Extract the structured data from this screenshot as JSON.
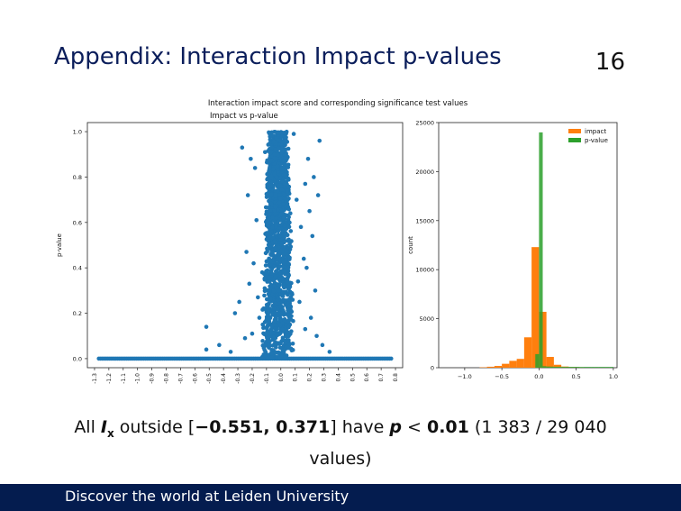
{
  "slide": {
    "title": "Appendix: Interaction Impact p-values",
    "number": "16",
    "caption_line1_pre": "All ",
    "caption_var": "I",
    "caption_sub": "x",
    "caption_mid": " outside [",
    "caption_interval": "−0.551, 0.371",
    "caption_after": "] have ",
    "caption_p": "p",
    "caption_lt": " < ",
    "caption_thresh": "0.01",
    "caption_count": " (1 383 / 29 040",
    "caption_line2": "values)",
    "footer": "Discover the world at Leiden University"
  },
  "figure": {
    "suptitle": "Interaction impact score and corresponding significance test values"
  },
  "chart_data": [
    {
      "type": "scatter",
      "title": "Impact vs p-value",
      "xlabel": "",
      "ylabel": "p-value",
      "color": "#1f77b4",
      "x_ticks": [
        "-1.3",
        "-1.2",
        "-1.1",
        "-1.0",
        "-0.9",
        "-0.8",
        "-0.7",
        "-0.6",
        "-0.5",
        "-0.4",
        "-0.3",
        "-0.2",
        "-0.1",
        "0.0",
        "0.1",
        "0.2",
        "0.3",
        "0.4",
        "0.5",
        "0.6",
        "0.7",
        "0.8"
      ],
      "y_ticks": [
        "0.0",
        "0.2",
        "0.4",
        "0.6",
        "0.8",
        "1.0"
      ],
      "xlim": [
        -1.35,
        0.85
      ],
      "ylim": [
        -0.04,
        1.04
      ],
      "baseline_range": [
        -1.27,
        0.77
      ],
      "core_range": [
        -0.12,
        0.08
      ],
      "outliers": [
        {
          "x": -0.21,
          "y": 0.88
        },
        {
          "x": -0.18,
          "y": 0.84
        },
        {
          "x": -0.23,
          "y": 0.72
        },
        {
          "x": -0.17,
          "y": 0.61
        },
        {
          "x": -0.24,
          "y": 0.47
        },
        {
          "x": -0.19,
          "y": 0.42
        },
        {
          "x": -0.22,
          "y": 0.33
        },
        {
          "x": -0.16,
          "y": 0.27
        },
        {
          "x": -0.29,
          "y": 0.25
        },
        {
          "x": -0.32,
          "y": 0.2
        },
        {
          "x": -0.52,
          "y": 0.14
        },
        {
          "x": -0.52,
          "y": 0.04
        },
        {
          "x": -0.43,
          "y": 0.06
        },
        {
          "x": -0.13,
          "y": 0.38
        },
        {
          "x": -0.15,
          "y": 0.18
        },
        {
          "x": -0.2,
          "y": 0.11
        },
        {
          "x": -0.25,
          "y": 0.09
        },
        {
          "x": -0.35,
          "y": 0.03
        },
        {
          "x": 0.27,
          "y": 0.96
        },
        {
          "x": 0.19,
          "y": 0.88
        },
        {
          "x": 0.23,
          "y": 0.8
        },
        {
          "x": 0.17,
          "y": 0.77
        },
        {
          "x": 0.26,
          "y": 0.72
        },
        {
          "x": 0.2,
          "y": 0.65
        },
        {
          "x": 0.14,
          "y": 0.58
        },
        {
          "x": 0.22,
          "y": 0.54
        },
        {
          "x": 0.16,
          "y": 0.44
        },
        {
          "x": 0.18,
          "y": 0.4
        },
        {
          "x": 0.24,
          "y": 0.3
        },
        {
          "x": 0.13,
          "y": 0.25
        },
        {
          "x": 0.21,
          "y": 0.18
        },
        {
          "x": 0.17,
          "y": 0.13
        },
        {
          "x": 0.25,
          "y": 0.1
        },
        {
          "x": 0.29,
          "y": 0.06
        },
        {
          "x": 0.34,
          "y": 0.03
        },
        {
          "x": 0.11,
          "y": 0.7
        },
        {
          "x": 0.12,
          "y": 0.34
        },
        {
          "x": -0.11,
          "y": 0.91
        },
        {
          "x": -0.27,
          "y": 0.93
        },
        {
          "x": 0.09,
          "y": 0.99
        }
      ]
    },
    {
      "type": "bar",
      "title": "",
      "xlabel": "",
      "ylabel": "count",
      "x_ticks": [
        "−1.0",
        "−0.5",
        "0.0",
        "0.5",
        "1.0"
      ],
      "y_ticks": [
        "0",
        "5000",
        "10000",
        "15000",
        "20000",
        "25000"
      ],
      "xlim": [
        -1.35,
        1.05
      ],
      "ylim": [
        0,
        25000
      ],
      "legend_position": "top-right",
      "series": [
        {
          "name": "impact",
          "color": "#ff7f0e",
          "bin_edges": [
            -0.8,
            -0.7,
            -0.6,
            -0.5,
            -0.4,
            -0.3,
            -0.2,
            -0.1,
            0.0,
            0.1,
            0.2,
            0.3,
            0.4,
            0.5,
            0.6
          ],
          "values": [
            40,
            100,
            180,
            400,
            700,
            900,
            3100,
            12300,
            5700,
            1100,
            300,
            120,
            60,
            30
          ]
        },
        {
          "name": "p-value",
          "color": "#2ca02c",
          "bin_edges": [
            -0.05,
            0.0,
            0.05,
            0.1,
            0.15,
            0.2,
            0.25,
            0.3,
            0.35,
            0.4,
            0.45,
            0.5,
            0.55,
            0.6,
            0.65,
            0.7,
            0.75,
            0.8,
            0.85,
            0.9,
            0.95,
            1.0
          ],
          "values": [
            1383,
            24000,
            150,
            120,
            110,
            100,
            100,
            90,
            90,
            90,
            90,
            90,
            80,
            80,
            80,
            80,
            80,
            80,
            80,
            80,
            80
          ]
        }
      ]
    }
  ]
}
